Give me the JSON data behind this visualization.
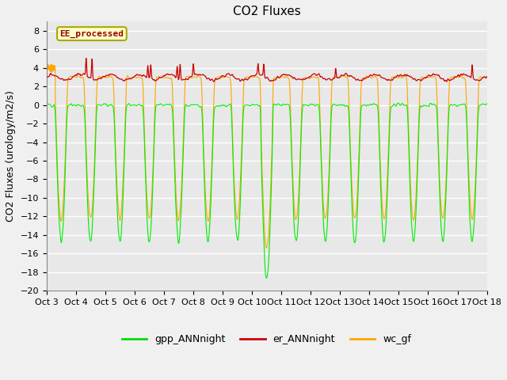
{
  "title": "CO2 Fluxes",
  "ylabel": "CO2 Fluxes (urology/m2/s)",
  "xlim": [
    0,
    15
  ],
  "ylim": [
    -20,
    9
  ],
  "yticks": [
    -20,
    -18,
    -16,
    -14,
    -12,
    -10,
    -8,
    -6,
    -4,
    -2,
    0,
    2,
    4,
    6,
    8
  ],
  "xtick_labels": [
    "Oct 3",
    "Oct 4",
    "Oct 5",
    "Oct 6",
    "Oct 7",
    "Oct 8",
    "Oct 9",
    "Oct 10",
    "Oct 11",
    "Oct 12",
    "Oct 13",
    "Oct 14",
    "Oct 15",
    "Oct 16",
    "Oct 17",
    "Oct 18"
  ],
  "legend_labels": [
    "gpp_ANNnight",
    "er_ANNnight",
    "wc_gf"
  ],
  "legend_colors": [
    "#00dd00",
    "#cc0000",
    "#ffa500"
  ],
  "inset_label": "EE_processed",
  "inset_label_color": "#990000",
  "inset_bg": "#ffffcc",
  "inset_border": "#aaaa00",
  "plot_bg_color": "#e8e8e8",
  "fig_bg_color": "#f0f0f0",
  "grid_color": "#ffffff",
  "gpp_color": "#00ee00",
  "er_color": "#cc0000",
  "wc_color": "#ffa500",
  "title_fontsize": 11,
  "axis_label_fontsize": 9,
  "tick_fontsize": 8
}
